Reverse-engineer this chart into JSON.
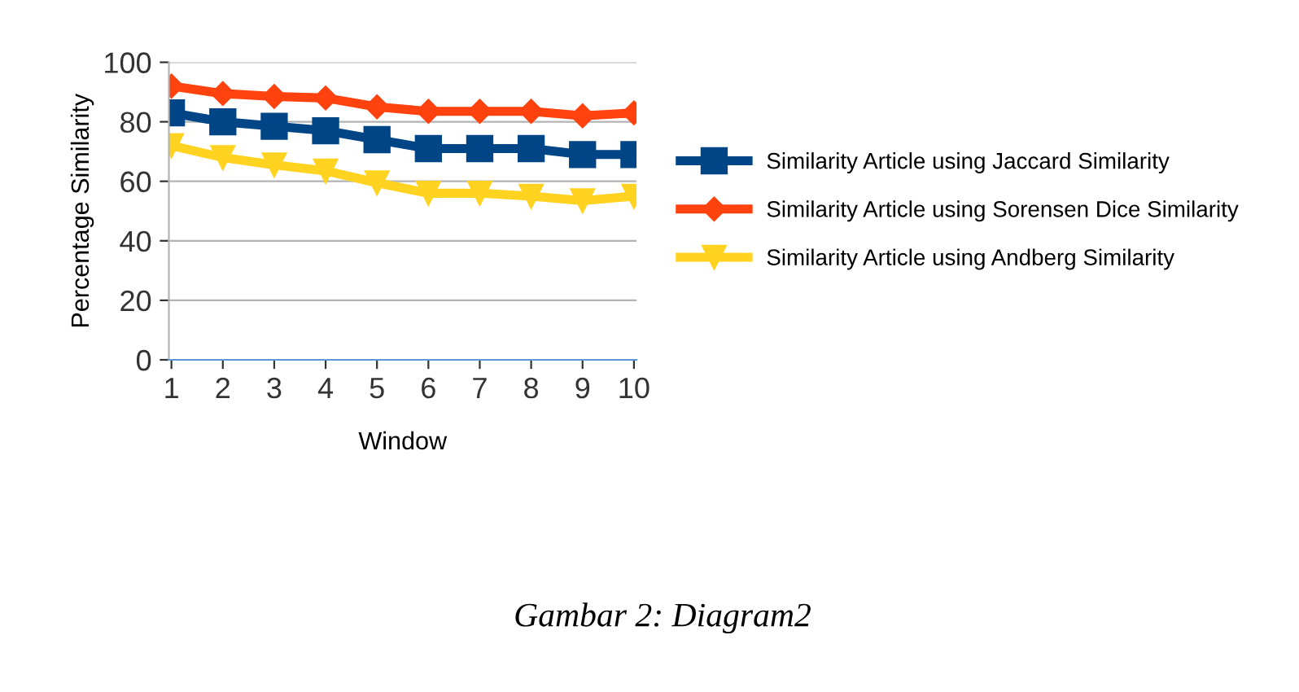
{
  "chart_data": {
    "type": "line",
    "xlabel": "Window",
    "ylabel": "Percentage Similarity",
    "categories": [
      "1",
      "2",
      "3",
      "4",
      "5",
      "6",
      "7",
      "8",
      "9",
      "10"
    ],
    "series": [
      {
        "name": "Similarity Article using Jaccard Similarity",
        "color": "#004586",
        "marker": "square",
        "values": [
          83,
          80,
          78.5,
          77,
          74,
          71,
          71,
          71,
          69,
          69
        ]
      },
      {
        "name": "Similarity Article using Sorensen Dice Similarity",
        "color": "#ff420e",
        "marker": "diamond",
        "values": [
          92,
          89.5,
          88.5,
          88,
          85,
          83.5,
          83.5,
          83.5,
          82,
          83
        ]
      },
      {
        "name": "Similarity Article using Andberg Similarity",
        "color": "#ffd320",
        "marker": "triangle",
        "values": [
          72,
          68,
          65.5,
          63.5,
          59.5,
          56,
          56,
          55,
          53.5,
          55
        ]
      }
    ],
    "ylim": [
      0,
      100
    ],
    "yticks": [
      0,
      20,
      40,
      60,
      80,
      100
    ],
    "grid": "y",
    "legend": "right",
    "line_style": "solid",
    "annotations": [
      "Gambar 2: Diagram2"
    ]
  }
}
